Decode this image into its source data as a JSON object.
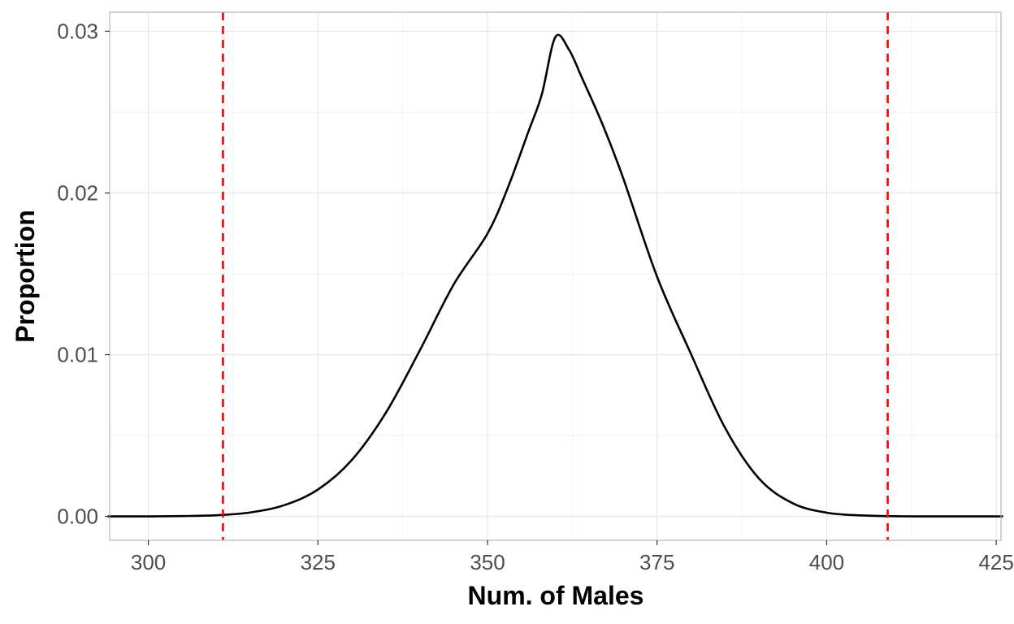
{
  "chart_data": {
    "type": "line",
    "title": "",
    "xlabel": "Num. of Males",
    "ylabel": "Proportion",
    "xlim": [
      294.3,
      425.7
    ],
    "ylim": [
      -0.00148,
      0.03118
    ],
    "x_ticks": [
      300,
      325,
      350,
      375,
      400,
      425
    ],
    "x_tick_labels": [
      "300",
      "325",
      "350",
      "375",
      "400",
      "425"
    ],
    "y_ticks": [
      0.0,
      0.01,
      0.02,
      0.03
    ],
    "y_tick_labels": [
      "0.00",
      "0.01",
      "0.02",
      "0.03"
    ],
    "grid": true,
    "legend": "none",
    "series": [
      {
        "x": [
          294,
          300,
          305,
          310,
          315,
          320,
          325,
          330,
          335,
          340,
          345,
          350,
          353,
          356,
          358,
          360,
          362,
          364,
          367,
          370,
          375,
          380,
          385,
          390,
          395,
          400,
          405,
          410,
          415,
          420,
          426
        ],
        "y": [
          0.0,
          0.0,
          2e-05,
          7e-05,
          0.00024,
          0.00069,
          0.00166,
          0.00349,
          0.0064,
          0.01025,
          0.01433,
          0.01749,
          0.02033,
          0.02376,
          0.02609,
          0.02964,
          0.02887,
          0.02705,
          0.0242,
          0.02092,
          0.01482,
          0.01004,
          0.00549,
          0.00235,
          0.00081,
          0.00023,
          6e-05,
          1e-05,
          0.0,
          0.0,
          0.0
        ],
        "color": "#000000"
      }
    ],
    "reference_lines": [
      {
        "axis": "x",
        "value": 311,
        "color": "#ff0000",
        "style": "dashed"
      },
      {
        "axis": "x",
        "value": 409,
        "color": "#ff0000",
        "style": "dashed"
      }
    ],
    "colors": {
      "panel_border": "#b3b3b3",
      "grid_major": "#e5e5e5",
      "grid_minor": "#f2f2f2",
      "tick_text": "#4d4d4d"
    }
  }
}
